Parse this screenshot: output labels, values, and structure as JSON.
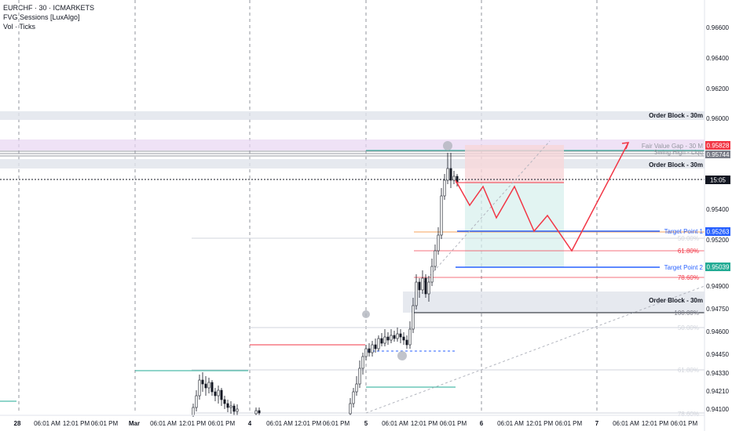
{
  "header": {
    "symbol_line": "EURCHF · 30 · ICMARKETS",
    "indicator_line": "FVG Sessions [LuxAlgo]",
    "volume_line": "Vol · Ticks"
  },
  "price_axis": {
    "ticks": [
      "0.96600",
      "0.96400",
      "0.96200",
      "0.96000",
      "0.95400",
      "0.95200",
      "0.94900",
      "0.94750",
      "0.94600",
      "0.94450",
      "0.94330",
      "0.94210",
      "0.94100"
    ],
    "current_price": "0.95828",
    "countdown": "15:05",
    "target1_price": "0.95263",
    "target2_price": "0.95039",
    "hidden_tag": "0.95744"
  },
  "time_axis": {
    "labels": [
      "28",
      "06:01 AM",
      "12:01 PM",
      "06:01 PM",
      "Mar",
      "06:01 AM",
      "12:01 PM",
      "06:01 PM",
      "4",
      "06:01 AM",
      "12:01 PM",
      "06:01 PM",
      "5",
      "06:01 AM",
      "12:01 PM",
      "06:01 PM",
      "6",
      "06:01 AM",
      "12:01 PM",
      "06:01 PM",
      "7",
      "06:01 AM",
      "12:01 PM",
      "06:01 PM"
    ]
  },
  "annotations": {
    "order_block_top": "Order Block - 30m",
    "order_block_mid": "Order Block - 30m",
    "order_block_low": "Order Block - 30m",
    "fvg_label": "Fair Value Gap - 30 M",
    "swing_label": "Swing High - Liqq",
    "target1": "Target Point 1",
    "target2": "Target Point 2",
    "fib_50_top": "50.00%",
    "fib_618": "61.80%",
    "fib_786": "78.60%",
    "fib_100": "100.00%",
    "fib_50_low": "50.00%",
    "fib_618_low": "61.80%",
    "fib_786_low": "78.60%"
  },
  "colors": {
    "bull": "#131722",
    "bear": "#131722",
    "red": "#f23645",
    "blue": "#2962ff",
    "teal": "#22ab94",
    "orderblock": "#e0e3eb",
    "fvg": "#e8d6f2",
    "short_zone": "#f8d7da",
    "long_zone": "#d6f0ec"
  }
}
